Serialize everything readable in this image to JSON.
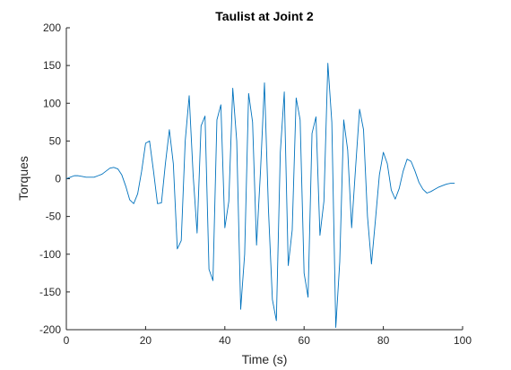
{
  "chart_data": {
    "type": "line",
    "title": "Taulist at Joint 2",
    "xlabel": "Time (s)",
    "ylabel": "Torques",
    "xlim": [
      0,
      100
    ],
    "ylim": [
      -200,
      200
    ],
    "xticks": [
      0,
      20,
      40,
      60,
      80,
      100
    ],
    "yticks": [
      -200,
      -150,
      -100,
      -50,
      0,
      50,
      100,
      150,
      200
    ],
    "grid": false,
    "box": "left-bottom",
    "series": [
      {
        "color": "#0072BD",
        "x": [
          0,
          1,
          2,
          3,
          4,
          5,
          6,
          7,
          8,
          9,
          10,
          11,
          12,
          13,
          14,
          15,
          16,
          17,
          18,
          19,
          20,
          21,
          22,
          23,
          24,
          25,
          26,
          27,
          28,
          29,
          30,
          31,
          32,
          33,
          34,
          35,
          36,
          37,
          38,
          39,
          40,
          41,
          42,
          43,
          44,
          45,
          46,
          47,
          48,
          49,
          50,
          51,
          52,
          53,
          54,
          55,
          56,
          57,
          58,
          59,
          60,
          61,
          62,
          63,
          64,
          65,
          66,
          67,
          68,
          69,
          70,
          71,
          72,
          73,
          74,
          75,
          76,
          77,
          78,
          79,
          80,
          81,
          82,
          83,
          84,
          85,
          86,
          87,
          88,
          89,
          90,
          91,
          92,
          93,
          94,
          95,
          96,
          97,
          98
        ],
        "y": [
          0,
          2,
          4,
          4,
          3,
          2,
          2,
          2,
          4,
          6,
          10,
          14,
          15,
          13,
          5,
          -10,
          -28,
          -33,
          -20,
          10,
          47,
          50,
          10,
          -33,
          -32,
          20,
          65,
          20,
          -93,
          -82,
          50,
          110,
          5,
          -72,
          70,
          83,
          -120,
          -135,
          78,
          98,
          -65,
          -30,
          120,
          50,
          -173,
          -100,
          113,
          75,
          -88,
          10,
          127,
          -40,
          -160,
          -188,
          35,
          115,
          -115,
          -68,
          107,
          78,
          -125,
          -157,
          60,
          82,
          -75,
          -30,
          153,
          75,
          -197,
          -110,
          78,
          38,
          -65,
          15,
          92,
          65,
          -50,
          -113,
          -55,
          5,
          35,
          20,
          -15,
          -27,
          -13,
          10,
          26,
          23,
          10,
          -5,
          -14,
          -19,
          -17,
          -14,
          -11,
          -9,
          -7,
          -6,
          -6
        ]
      }
    ]
  }
}
